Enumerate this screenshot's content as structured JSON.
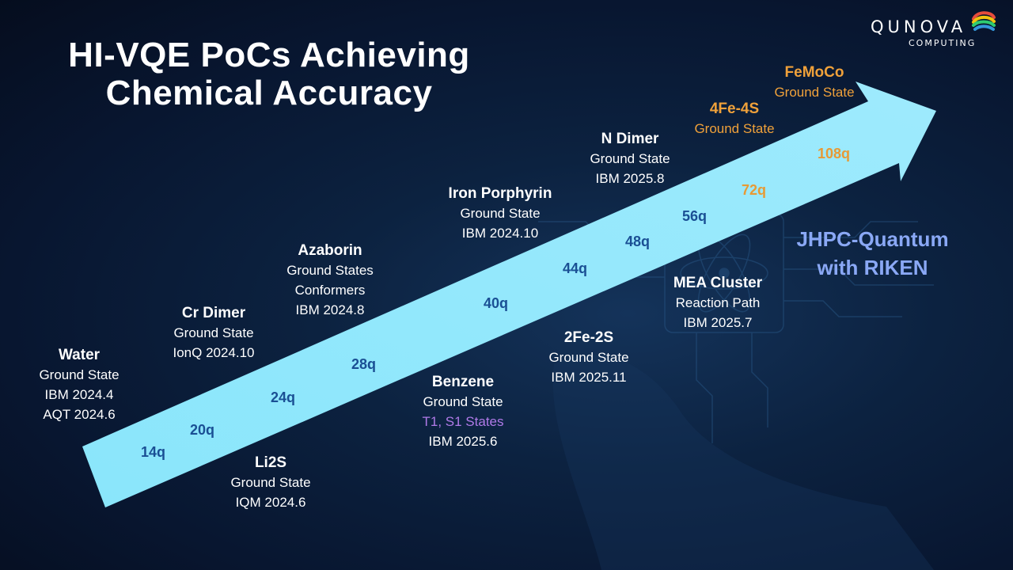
{
  "title": [
    "HI-VQE PoCs Achieving",
    "Chemical Accuracy"
  ],
  "logo": {
    "name": "QUNOVA",
    "sub": "COMPUTING"
  },
  "colors": {
    "arrow": "#8de6fb",
    "qubit_blue": "#1a4f94",
    "orange": "#f0a13a",
    "purple": "#b07ae8",
    "jhpc": "#8aa8f5"
  },
  "milestones": {
    "water": {
      "name": "Water",
      "lines": [
        "Ground State",
        "IBM 2024.4",
        "AQT 2024.6"
      ]
    },
    "cr_dimer": {
      "name": "Cr Dimer",
      "lines": [
        "Ground State",
        "IonQ 2024.10"
      ]
    },
    "azaborin": {
      "name": "Azaborin",
      "lines": [
        "Ground States",
        "Conformers",
        "IBM 2024.8"
      ]
    },
    "iron_porphyrin": {
      "name": "Iron Porphyrin",
      "lines": [
        "Ground State",
        "IBM 2024.10"
      ]
    },
    "n_dimer": {
      "name": "N Dimer",
      "lines": [
        "Ground State",
        "IBM 2025.8"
      ]
    },
    "fe4s4": {
      "name": "4Fe-4S",
      "lines": [
        "Ground State"
      ]
    },
    "femoco": {
      "name": "FeMoCo",
      "lines": [
        "Ground State"
      ]
    },
    "li2s": {
      "name": "Li2S",
      "lines": [
        "Ground State",
        "IQM 2024.6"
      ]
    },
    "benzene": {
      "name": "Benzene",
      "lines": [
        "Ground State",
        "T1, S1 States",
        "IBM 2025.6"
      ]
    },
    "fe2s2": {
      "name": "2Fe-2S",
      "lines": [
        "Ground State",
        "IBM 2025.11"
      ]
    },
    "mea_cluster": {
      "name": "MEA Cluster",
      "lines": [
        "Reaction Path",
        "IBM 2025.7"
      ]
    }
  },
  "qubits": [
    "14q",
    "20q",
    "24q",
    "28q",
    "40q",
    "44q",
    "48q",
    "56q",
    "72q",
    "108q"
  ],
  "jhpc": [
    "JHPC-Quantum",
    "with RIKEN"
  ]
}
